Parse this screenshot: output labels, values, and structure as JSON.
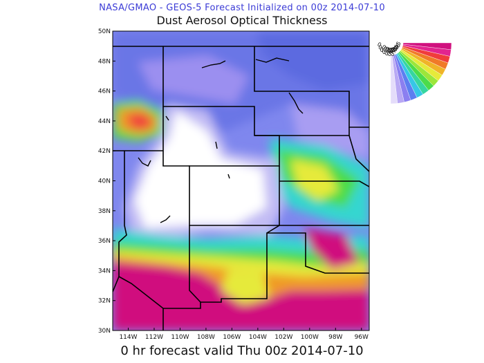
{
  "header": {
    "line": "NASA/GMAO - GEOS-5 Forecast Initialized on 00z 2014-07-10",
    "title": "Dust Aerosol Optical Thickness"
  },
  "footer": "0 hr forecast valid Thu 00z 2014-07-10",
  "map": {
    "lat_labels": [
      "50N",
      "48N",
      "46N",
      "44N",
      "42N",
      "40N",
      "38N",
      "36N",
      "34N",
      "32N",
      "30N"
    ],
    "lon_labels": [
      "114W",
      "112W",
      "110W",
      "108W",
      "106W",
      "104W",
      "102W",
      "100W",
      "98W",
      "96W"
    ],
    "lat_range": [
      30,
      50
    ],
    "lon_range": [
      -115.2,
      -95.4
    ],
    "palette": {
      "high": "#d0107e",
      "red": "#f03c3c",
      "orange": "#f09a28",
      "yellow": "#e6ea3a",
      "green": "#4cdc4a",
      "cyan": "#36d6d0",
      "blue": "#5c7ef0",
      "purple": "#9b8ff0",
      "lavender": "#c2bcf4",
      "low": "#ffffff"
    }
  },
  "colorbar": {
    "labels": [
      "0.055",
      "0.046",
      "0.037",
      "0.029",
      "0.021",
      "0.013",
      "0.005"
    ],
    "colors": [
      "#d0107e",
      "#e2248f",
      "#f03c3c",
      "#f07a28",
      "#f0b428",
      "#e6ea3a",
      "#9ce63a",
      "#4cdc4a",
      "#36d6a0",
      "#36c6e6",
      "#5c7ef0",
      "#8b7ff0",
      "#b8a8f4",
      "#e4dcfa"
    ]
  }
}
